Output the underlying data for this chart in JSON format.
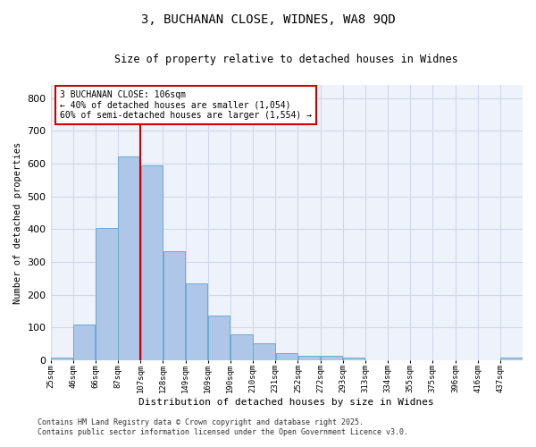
{
  "title1": "3, BUCHANAN CLOSE, WIDNES, WA8 9QD",
  "title2": "Size of property relative to detached houses in Widnes",
  "xlabel": "Distribution of detached houses by size in Widnes",
  "ylabel": "Number of detached properties",
  "bin_labels": [
    "25sqm",
    "46sqm",
    "66sqm",
    "87sqm",
    "107sqm",
    "128sqm",
    "149sqm",
    "169sqm",
    "190sqm",
    "210sqm",
    "231sqm",
    "252sqm",
    "272sqm",
    "293sqm",
    "313sqm",
    "334sqm",
    "355sqm",
    "375sqm",
    "396sqm",
    "416sqm",
    "437sqm"
  ],
  "bar_heights": [
    7,
    108,
    403,
    621,
    595,
    333,
    235,
    137,
    79,
    52,
    22,
    14,
    14,
    9,
    0,
    0,
    0,
    0,
    0,
    0,
    8
  ],
  "bar_color": "#aec6e8",
  "bar_edgecolor": "#6aaad4",
  "grid_color": "#d0d8e8",
  "background_color": "#eef2fa",
  "vline_color": "#cc0000",
  "annotation_text": "3 BUCHANAN CLOSE: 106sqm\n← 40% of detached houses are smaller (1,054)\n60% of semi-detached houses are larger (1,554) →",
  "annotation_box_color": "#ffffff",
  "annotation_box_edge": "#cc0000",
  "footer1": "Contains HM Land Registry data © Crown copyright and database right 2025.",
  "footer2": "Contains public sector information licensed under the Open Government Licence v3.0.",
  "ylim": [
    0,
    840
  ],
  "yticks": [
    0,
    100,
    200,
    300,
    400,
    500,
    600,
    700,
    800
  ]
}
